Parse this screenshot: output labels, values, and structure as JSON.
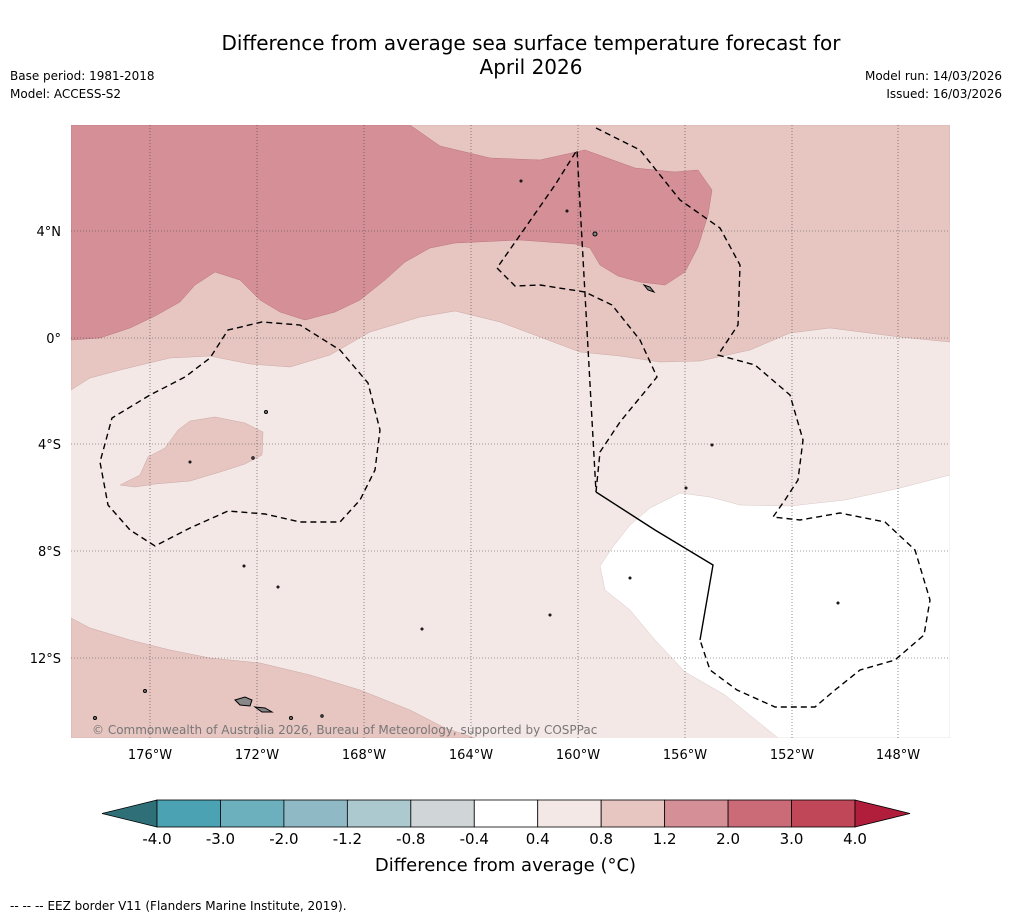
{
  "title": {
    "line1": "Difference from average sea surface temperature forecast for",
    "line2": "April 2026"
  },
  "meta": {
    "base_period": "Base period: 1981-2018",
    "model": "Model: ACCESS-S2",
    "model_run": "Model run: 14/03/2026",
    "issued": "Issued: 16/03/2026"
  },
  "map": {
    "lat_labels": [
      "4°N",
      "0°",
      "4°S",
      "8°S",
      "12°S"
    ],
    "lon_labels": [
      "176°W",
      "172°W",
      "168°W",
      "164°W",
      "160°W",
      "156°W",
      "152°W",
      "148°W"
    ],
    "copyright": "© Commonwealth of Australia 2026, Bureau of Meteorology, supported by COSPPac"
  },
  "colorbar": {
    "title_text": "Difference from average (",
    "title_unit": "°C",
    "title_close": ")",
    "ticks": [
      "-4.0",
      "-3.0",
      "-2.0",
      "-1.2",
      "-0.8",
      "-0.4",
      "0.4",
      "0.8",
      "1.2",
      "2.0",
      "3.0",
      "4.0"
    ],
    "colors": {
      "under": "#2f6f77",
      "bins": [
        "#4aa2b2",
        "#6cafbd",
        "#8fbac5",
        "#abc9cf",
        "#d0d6d7",
        "#ffffff",
        "#f4e8e7",
        "#e7c6c2",
        "#d58f97",
        "#cb6b77",
        "#bf4757"
      ],
      "over": "#b01e3c"
    }
  },
  "legend_note": {
    "symbol": "--  --  --",
    "text": "EEZ border V11 (Flanders Marine Institute, 2019)."
  }
}
